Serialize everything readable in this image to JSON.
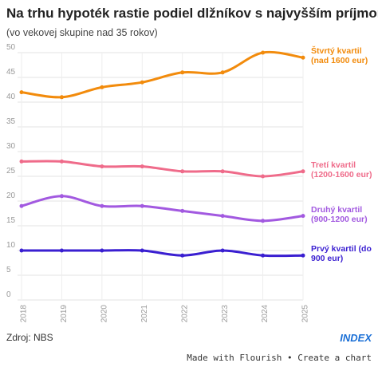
{
  "chart_data": {
    "type": "line",
    "title": "Na trhu hypoték rastie podiel dlžníkov s najvyšším príjmom",
    "subtitle": "(vo vekovej skupine nad 35 rokov)",
    "categories": [
      "2018",
      "2019",
      "2020",
      "2021",
      "2022",
      "2023",
      "2024",
      "2025"
    ],
    "series": [
      {
        "name": "Štvrtý kvartil (nad 1600 eur)",
        "color": "#f28b0c",
        "values": [
          42,
          41,
          43,
          44,
          46,
          46,
          50,
          49
        ]
      },
      {
        "name": "Tretí kvartil (1200-1600 eur)",
        "color": "#ef6b8a",
        "values": [
          28,
          28,
          27,
          27,
          26,
          26,
          25,
          26
        ]
      },
      {
        "name": "Druhý kvartil (900-1200 eur)",
        "color": "#a259e0",
        "values": [
          19,
          21,
          19,
          19,
          18,
          17,
          16,
          17
        ]
      },
      {
        "name": "Prvý kvartil (do 900 eur)",
        "color": "#3a1fd1",
        "values": [
          10,
          10,
          10,
          10,
          9,
          10,
          9,
          9
        ]
      }
    ],
    "ylim": [
      0,
      50
    ],
    "yticks": [
      0,
      5,
      10,
      15,
      20,
      25,
      30,
      35,
      40,
      45,
      50
    ],
    "grid": true,
    "source": "Zdroj: NBS",
    "logo": "INDEX",
    "footer": "Made with Flourish • Create a chart"
  }
}
